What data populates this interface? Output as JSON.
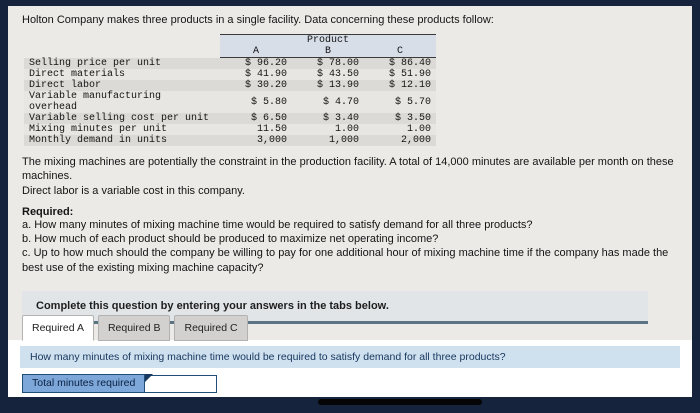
{
  "intro": "Holton Company makes three products in a single facility. Data concerning these products follow:",
  "table": {
    "group_header": "Product",
    "columns": [
      "A",
      "B",
      "C"
    ],
    "rows": [
      {
        "label": "Selling price per unit",
        "values": [
          "$ 96.20",
          "$ 78.00",
          "$ 86.40"
        ]
      },
      {
        "label": "Direct materials",
        "values": [
          "$ 41.90",
          "$ 43.50",
          "$ 51.90"
        ]
      },
      {
        "label": "Direct labor",
        "values": [
          "$ 30.20",
          "$ 13.90",
          "$ 12.10"
        ]
      },
      {
        "label": "Variable manufacturing overhead",
        "values": [
          "$ 5.80",
          "$ 4.70",
          "$ 5.70"
        ]
      },
      {
        "label": "Variable selling cost per unit",
        "values": [
          "$ 6.50",
          "$ 3.40",
          "$ 3.50"
        ]
      },
      {
        "label": "Mixing minutes per unit",
        "values": [
          "11.50",
          "1.00",
          "1.00"
        ]
      },
      {
        "label": "Monthly demand in units",
        "values": [
          "3,000",
          "1,000",
          "2,000"
        ]
      }
    ]
  },
  "notes": [
    "The mixing machines are potentially the constraint in the production facility. A total of 14,000 minutes are available per month on these machines.",
    "Direct labor is a variable cost in this company."
  ],
  "required": {
    "title": "Required:",
    "items": [
      "a. How many minutes of mixing machine time would be required to satisfy demand for all three products?",
      "b. How much of each product should be produced to maximize net operating income?",
      "c. Up to how much should the company be willing to pay for one additional hour of mixing machine time if the company has made the best use of the existing mixing machine capacity?"
    ]
  },
  "instruction": "Complete this question by entering your answers in the tabs below.",
  "tabs": [
    {
      "label": "Required A",
      "active": true
    },
    {
      "label": "Required B",
      "active": false
    },
    {
      "label": "Required C",
      "active": false
    }
  ],
  "question": "How many minutes of mixing machine time would be required to satisfy demand for all three products?",
  "answer": {
    "label": "Total minutes required",
    "value": ""
  },
  "colors": {
    "frame": "#16233d",
    "page_bg": "#eceae7",
    "instruction_box_border": "#5a7484",
    "question_bar_bg": "#cfe0ef",
    "answer_label_bg": "#7da7d9",
    "answer_border": "#1f4e79"
  }
}
